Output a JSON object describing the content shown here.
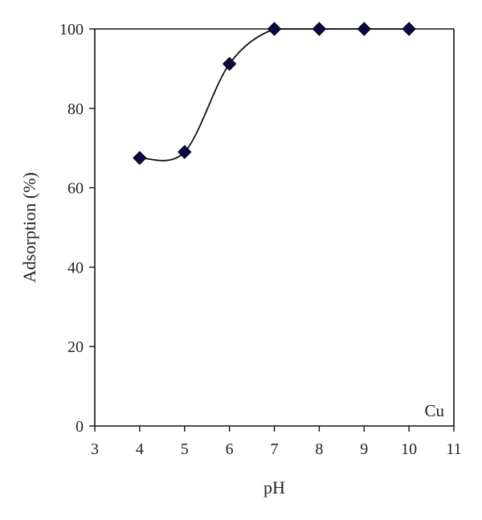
{
  "chart_data": {
    "type": "scatter",
    "title": "",
    "xlabel": "pH",
    "ylabel": "Adsorption (%)",
    "xlim": [
      3,
      11
    ],
    "ylim": [
      0,
      100
    ],
    "xticks": [
      "3",
      "4",
      "5",
      "6",
      "7",
      "8",
      "9",
      "10",
      "11"
    ],
    "yticks": [
      "0",
      "20",
      "40",
      "60",
      "80",
      "100"
    ],
    "grid": false,
    "legend": "none",
    "annotation": "Cu",
    "marker_color": "#0a0a4a",
    "line_color": "#111111",
    "series": [
      {
        "x": [
          4,
          5,
          6,
          7,
          8,
          9,
          10
        ],
        "y": [
          67.5,
          69,
          91.2,
          100,
          100,
          100,
          100
        ],
        "marker": "diamond",
        "smooth_line": true
      }
    ]
  }
}
